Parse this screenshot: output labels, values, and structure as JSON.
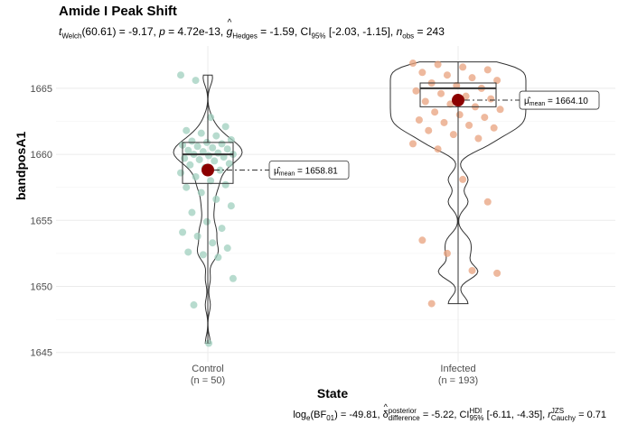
{
  "title": "Amide I Peak Shift",
  "subtitle": {
    "t_label": "t",
    "t_sub": "Welch",
    "t_value": "(60.61) = -9.17, ",
    "p_label": "p",
    "p_value": " = 4.72e-13, ",
    "g_label": "g",
    "g_hat": "^",
    "g_sub": "Hedges",
    "g_value": " = -1.59, CI",
    "ci_sub": "95%",
    "ci_value": " [-2.03, -1.15], ",
    "n_label": "n",
    "n_sub": "obs",
    "n_value": " = 243"
  },
  "caption": {
    "log_label": "log",
    "log_sub": "e",
    "bf_open": "(BF",
    "bf_sub": "01",
    "bf_value": ") = -49.81, ",
    "delta_label": "δ",
    "delta_hat": "^",
    "delta_sup": "posterior",
    "delta_sub": "difference",
    "delta_value": " = -5.22, CI",
    "ci_sup": "HDI",
    "ci_sub": "95%",
    "ci_value": " [-6.11, -4.35], ",
    "r_label": "r",
    "r_sup": "JZS",
    "r_sub": "Cauchy",
    "r_value": " = 0.71"
  },
  "colors": {
    "control": "#9fcfbe",
    "infected": "#e8a27e",
    "mean": "#8b0000",
    "grid": "#ebebeb"
  },
  "chart_data": {
    "type": "violin-box-scatter",
    "xlabel": "State",
    "ylabel": "bandposA1",
    "ylim": [
      1644.3,
      1668.2
    ],
    "yticks": [
      1645,
      1650,
      1655,
      1660,
      1665
    ],
    "grid": true,
    "groups": [
      {
        "name": "Control",
        "n_label": "(n = 50)",
        "q1": 1657.8,
        "median": 1660.0,
        "q3": 1660.9,
        "min": 1645.7,
        "max": 1666.0,
        "mean": 1658.81,
        "mean_label": "1658.81",
        "points": [
          1666.0,
          1665.6,
          1662.8,
          1662.1,
          1661.8,
          1661.6,
          1661.4,
          1661.1,
          1661.0,
          1660.9,
          1660.8,
          1660.7,
          1660.6,
          1660.5,
          1660.4,
          1660.3,
          1660.2,
          1660.1,
          1660.0,
          1660.0,
          1659.9,
          1659.8,
          1659.7,
          1659.6,
          1659.5,
          1659.3,
          1659.2,
          1659.0,
          1658.8,
          1658.6,
          1658.3,
          1658.0,
          1657.7,
          1657.5,
          1657.1,
          1656.6,
          1656.1,
          1655.6,
          1654.9,
          1654.4,
          1654.1,
          1653.8,
          1653.3,
          1652.9,
          1652.6,
          1652.4,
          1652.2,
          1650.6,
          1648.6,
          1645.7
        ]
      },
      {
        "name": "Infected",
        "n_label": "(n = 193)",
        "q1": 1663.6,
        "median": 1665.0,
        "q3": 1665.4,
        "min": 1648.7,
        "max": 1667.0,
        "mean": 1664.1,
        "mean_label": "1664.10",
        "points": [
          1666.9,
          1666.8,
          1666.6,
          1666.4,
          1666.2,
          1666.0,
          1665.8,
          1665.6,
          1665.4,
          1665.2,
          1665.0,
          1664.8,
          1664.6,
          1664.4,
          1664.2,
          1664.0,
          1663.8,
          1663.6,
          1663.4,
          1663.2,
          1663.0,
          1662.8,
          1662.6,
          1662.4,
          1662.2,
          1662.0,
          1661.8,
          1661.5,
          1661.2,
          1660.8,
          1660.4,
          1658.1,
          1656.4,
          1653.5,
          1652.5,
          1651.2,
          1651.0,
          1648.7
        ]
      }
    ]
  }
}
